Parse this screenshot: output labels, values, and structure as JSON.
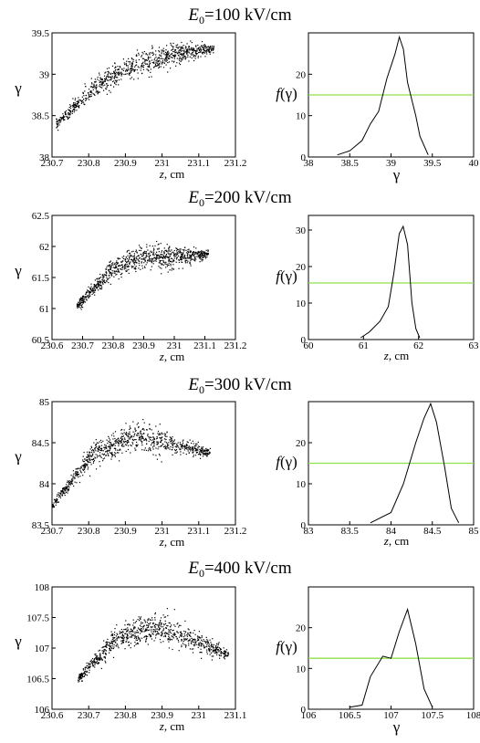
{
  "panels": [
    {
      "title": "E₀=100 kV/cm",
      "scatter": {
        "xlabel": "z, cm",
        "ylabel": "γ",
        "xlim": [
          230.7,
          231.2
        ],
        "ylim": [
          38,
          39.5
        ],
        "xticks": [
          "230.7",
          "230.8",
          "230.9",
          "231",
          "231.1",
          "231.2"
        ],
        "yticks": [
          "38",
          "38.5",
          "39",
          "39.5"
        ],
        "band": {
          "x0": 230.71,
          "x1": 231.14,
          "c": [
            38.4,
            38.85,
            39.12,
            39.25,
            39.32
          ],
          "halfwidth": 0.12,
          "points": 900
        }
      },
      "dist": {
        "xlabel": "γ",
        "ylabel": "f(γ)",
        "xlim": [
          38,
          40
        ],
        "ylim": [
          0,
          30
        ],
        "xticks": [
          "38",
          "38.5",
          "39",
          "39.5",
          "40"
        ],
        "yticks": [
          "0",
          "10",
          "20"
        ],
        "level": 15,
        "curve": [
          [
            38.35,
            0.5
          ],
          [
            38.5,
            1.5
          ],
          [
            38.65,
            4
          ],
          [
            38.75,
            8
          ],
          [
            38.85,
            11
          ],
          [
            38.95,
            19
          ],
          [
            39.05,
            25
          ],
          [
            39.1,
            29
          ],
          [
            39.15,
            26
          ],
          [
            39.2,
            18
          ],
          [
            39.3,
            10
          ],
          [
            39.35,
            5
          ],
          [
            39.45,
            0.5
          ]
        ]
      }
    },
    {
      "title": "E₀=200 kV/cm",
      "scatter": {
        "xlabel": "z, cm",
        "ylabel": "γ",
        "xlim": [
          230.6,
          231.2
        ],
        "ylim": [
          60.5,
          62.5
        ],
        "xticks": [
          "230.6",
          "230.7",
          "230.8",
          "230.9",
          "231",
          "231.1",
          "231.2"
        ],
        "yticks": [
          "60.5",
          "61",
          "61.5",
          "62",
          "62.5"
        ],
        "band": {
          "x0": 230.68,
          "x1": 231.11,
          "c": [
            61.05,
            61.6,
            61.85,
            61.83,
            61.88
          ],
          "halfwidth": 0.12,
          "points": 900
        }
      },
      "dist": {
        "xlabel": "z, cm",
        "ylabel": "f(γ)",
        "xlim": [
          60,
          63
        ],
        "ylim": [
          0,
          34
        ],
        "xticks": [
          "60",
          "61",
          "62",
          "63"
        ],
        "yticks": [
          "0",
          "10",
          "20",
          "30"
        ],
        "level": 15.5,
        "curve": [
          [
            60.95,
            0.5
          ],
          [
            61.1,
            2
          ],
          [
            61.3,
            5
          ],
          [
            61.45,
            9
          ],
          [
            61.55,
            18
          ],
          [
            61.65,
            29
          ],
          [
            61.72,
            31
          ],
          [
            61.8,
            26
          ],
          [
            61.88,
            10
          ],
          [
            61.95,
            3
          ],
          [
            62.02,
            0.5
          ]
        ]
      }
    },
    {
      "title": "E₀=300 kV/cm",
      "scatter": {
        "xlabel": "z, cm",
        "ylabel": "γ",
        "xlim": [
          230.7,
          231.2
        ],
        "ylim": [
          83.5,
          85
        ],
        "xticks": [
          "230.7",
          "230.8",
          "230.9",
          "231",
          "231.1",
          "231.2"
        ],
        "yticks": [
          "83.5",
          "84",
          "84.5",
          "85"
        ],
        "band": {
          "x0": 230.7,
          "x1": 231.13,
          "c": [
            83.75,
            84.35,
            84.58,
            84.5,
            84.38
          ],
          "halfwidth": 0.13,
          "points": 900
        }
      },
      "dist": {
        "xlabel": "z, cm",
        "ylabel": "f(γ)",
        "xlim": [
          83,
          85
        ],
        "ylim": [
          0,
          30
        ],
        "xticks": [
          "83",
          "83.5",
          "84",
          "84.5",
          "85"
        ],
        "yticks": [
          "0",
          "10",
          "20"
        ],
        "level": 15,
        "curve": [
          [
            83.75,
            0.5
          ],
          [
            84.0,
            3
          ],
          [
            84.15,
            10
          ],
          [
            84.3,
            20
          ],
          [
            84.4,
            26
          ],
          [
            84.48,
            29.5
          ],
          [
            84.55,
            25
          ],
          [
            84.65,
            14
          ],
          [
            84.73,
            4
          ],
          [
            84.82,
            0.5
          ]
        ]
      }
    },
    {
      "title": "E₀=400 kV/cm",
      "scatter": {
        "xlabel": "z, cm",
        "ylabel": "γ",
        "xlim": [
          230.6,
          231.1
        ],
        "ylim": [
          106,
          108
        ],
        "xticks": [
          "230.6",
          "230.7",
          "230.8",
          "230.9",
          "231",
          "231.1"
        ],
        "yticks": [
          "106",
          "106.5",
          "107",
          "107.5",
          "108"
        ],
        "band": {
          "x0": 230.67,
          "x1": 231.08,
          "c": [
            106.5,
            107.15,
            107.35,
            107.15,
            106.9
          ],
          "halfwidth": 0.14,
          "points": 900
        }
      },
      "dist": {
        "xlabel": "γ",
        "ylabel": "f(γ)",
        "xlim": [
          106,
          108
        ],
        "ylim": [
          0,
          30
        ],
        "xticks": [
          "106",
          "106.5",
          "107",
          "107.5",
          "108"
        ],
        "yticks": [
          "0",
          "10",
          "20"
        ],
        "level": 12.5,
        "curve": [
          [
            106.5,
            0.5
          ],
          [
            106.65,
            1
          ],
          [
            106.75,
            8
          ],
          [
            106.9,
            13
          ],
          [
            107.0,
            12.5
          ],
          [
            107.1,
            19
          ],
          [
            107.2,
            24.5
          ],
          [
            107.3,
            16
          ],
          [
            107.4,
            5
          ],
          [
            107.5,
            0.5
          ]
        ]
      }
    }
  ],
  "chart_data": [
    {
      "type": "scatter",
      "title": "E₀=100 kV/cm",
      "xlabel": "z, cm",
      "ylabel": "γ",
      "xlim": [
        230.7,
        231.2
      ],
      "ylim": [
        38,
        39.5
      ],
      "x": [
        230.72,
        230.8,
        230.9,
        231.0,
        231.1
      ],
      "y": [
        38.4,
        38.85,
        39.12,
        39.25,
        39.32
      ]
    },
    {
      "type": "line",
      "title": "E₀=100 kV/cm",
      "xlabel": "γ",
      "ylabel": "f(γ)",
      "xlim": [
        38,
        40
      ],
      "ylim": [
        0,
        30
      ],
      "x": [
        38.35,
        38.5,
        38.65,
        38.75,
        38.85,
        38.95,
        39.05,
        39.1,
        39.15,
        39.2,
        39.3,
        39.35,
        39.45
      ],
      "y": [
        0.5,
        1.5,
        4,
        8,
        11,
        19,
        25,
        29,
        26,
        18,
        10,
        5,
        0.5
      ],
      "level": 15
    },
    {
      "type": "scatter",
      "title": "E₀=200 kV/cm",
      "xlabel": "z, cm",
      "ylabel": "γ",
      "xlim": [
        230.6,
        231.2
      ],
      "ylim": [
        60.5,
        62.5
      ],
      "x": [
        230.68,
        230.8,
        230.9,
        231.0,
        231.1
      ],
      "y": [
        61.05,
        61.6,
        61.85,
        61.83,
        61.88
      ]
    },
    {
      "type": "line",
      "title": "E₀=200 kV/cm",
      "xlabel": "z, cm",
      "ylabel": "f(γ)",
      "xlim": [
        60,
        63
      ],
      "ylim": [
        0,
        34
      ],
      "x": [
        60.95,
        61.1,
        61.3,
        61.45,
        61.55,
        61.65,
        61.72,
        61.8,
        61.88,
        61.95,
        62.02
      ],
      "y": [
        0.5,
        2,
        5,
        9,
        18,
        29,
        31,
        26,
        10,
        3,
        0.5
      ],
      "level": 15.5
    },
    {
      "type": "scatter",
      "title": "E₀=300 kV/cm",
      "xlabel": "z, cm",
      "ylabel": "γ",
      "xlim": [
        230.7,
        231.2
      ],
      "ylim": [
        83.5,
        85
      ],
      "x": [
        230.7,
        230.8,
        230.9,
        231.0,
        231.1
      ],
      "y": [
        83.75,
        84.35,
        84.58,
        84.5,
        84.38
      ]
    },
    {
      "type": "line",
      "title": "E₀=300 kV/cm",
      "xlabel": "z, cm",
      "ylabel": "f(γ)",
      "xlim": [
        83,
        85
      ],
      "ylim": [
        0,
        30
      ],
      "x": [
        83.75,
        84.0,
        84.15,
        84.3,
        84.4,
        84.48,
        84.55,
        84.65,
        84.73,
        84.82
      ],
      "y": [
        0.5,
        3,
        10,
        20,
        26,
        29.5,
        25,
        14,
        4,
        0.5
      ],
      "level": 15
    },
    {
      "type": "scatter",
      "title": "E₀=400 kV/cm",
      "xlabel": "z, cm",
      "ylabel": "γ",
      "xlim": [
        230.6,
        231.1
      ],
      "ylim": [
        106,
        108
      ],
      "x": [
        230.67,
        230.75,
        230.85,
        230.95,
        231.05
      ],
      "y": [
        106.5,
        107.15,
        107.35,
        107.15,
        106.9
      ]
    },
    {
      "type": "line",
      "title": "E₀=400 kV/cm",
      "xlabel": "γ",
      "ylabel": "f(γ)",
      "xlim": [
        106,
        108
      ],
      "ylim": [
        0,
        30
      ],
      "x": [
        106.5,
        106.65,
        106.75,
        106.9,
        107.0,
        107.1,
        107.2,
        107.3,
        107.4,
        107.5
      ],
      "y": [
        0.5,
        1,
        8,
        13,
        12.5,
        19,
        24.5,
        16,
        5,
        0.5
      ],
      "level": 12.5
    }
  ]
}
